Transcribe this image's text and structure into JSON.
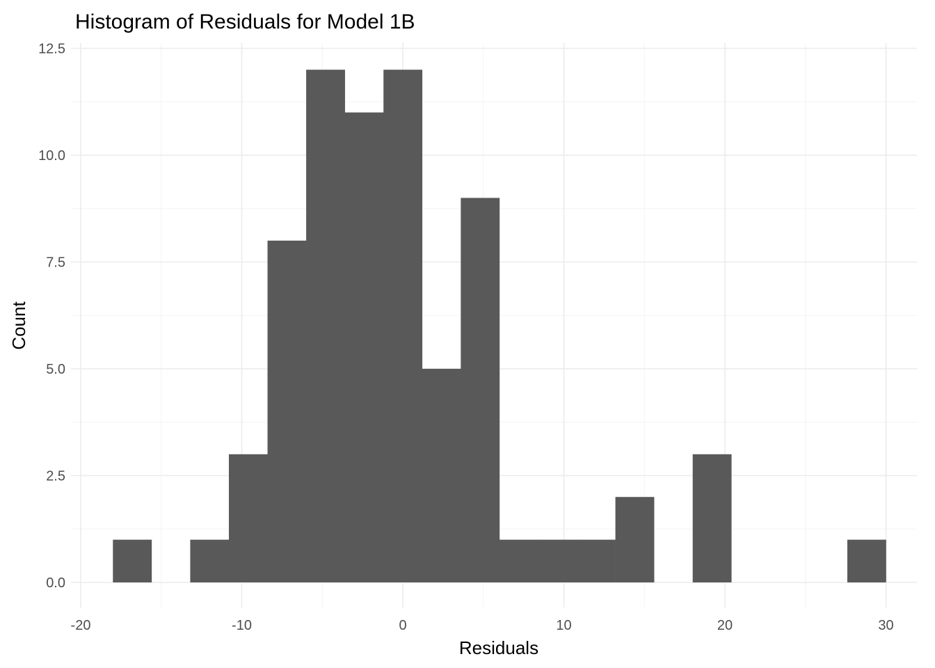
{
  "chart_data": {
    "type": "bar",
    "title": "Histogram of Residuals for Model 1B",
    "xlabel": "Residuals",
    "ylabel": "Count",
    "xlim": [
      -20,
      30
    ],
    "ylim": [
      0,
      12.5
    ],
    "x_ticks": [
      -20,
      -10,
      0,
      10,
      20,
      30
    ],
    "x_tick_labels": [
      "-20",
      "-10",
      "0",
      "10",
      "20",
      "30"
    ],
    "y_ticks": [
      0,
      2.5,
      5,
      7.5,
      10,
      12.5
    ],
    "y_tick_labels": [
      "0.0",
      "2.5",
      "5.0",
      "7.5",
      "10.0",
      "12.5"
    ],
    "bin_width": 2.4,
    "bins": [
      {
        "start": -18.0,
        "end": -15.6,
        "count": 1
      },
      {
        "start": -15.6,
        "end": -13.2,
        "count": 0
      },
      {
        "start": -13.2,
        "end": -10.8,
        "count": 1
      },
      {
        "start": -10.8,
        "end": -8.4,
        "count": 3
      },
      {
        "start": -8.4,
        "end": -6.0,
        "count": 8
      },
      {
        "start": -6.0,
        "end": -3.6,
        "count": 12
      },
      {
        "start": -3.6,
        "end": -1.2,
        "count": 11
      },
      {
        "start": -1.2,
        "end": 1.2,
        "count": 12
      },
      {
        "start": 1.2,
        "end": 3.6,
        "count": 5
      },
      {
        "start": 3.6,
        "end": 6.0,
        "count": 9
      },
      {
        "start": 6.0,
        "end": 8.4,
        "count": 1
      },
      {
        "start": 8.4,
        "end": 10.8,
        "count": 1
      },
      {
        "start": 10.8,
        "end": 13.2,
        "count": 1
      },
      {
        "start": 13.2,
        "end": 15.6,
        "count": 2
      },
      {
        "start": 15.6,
        "end": 18.0,
        "count": 0
      },
      {
        "start": 18.0,
        "end": 20.4,
        "count": 3
      },
      {
        "start": 20.4,
        "end": 22.8,
        "count": 0
      },
      {
        "start": 22.8,
        "end": 25.2,
        "count": 0
      },
      {
        "start": 25.2,
        "end": 27.6,
        "count": 0
      },
      {
        "start": 27.6,
        "end": 30.0,
        "count": 1
      }
    ],
    "bar_color": "#595959",
    "background_color": "#ffffff",
    "grid": true,
    "legend": "none"
  }
}
